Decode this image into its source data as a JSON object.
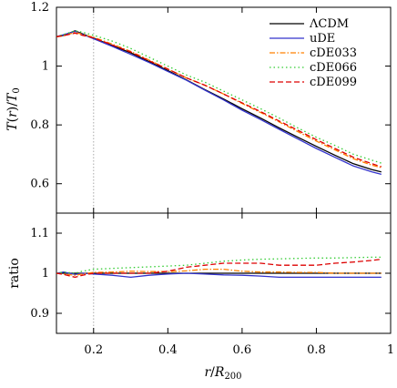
{
  "chart_data": [
    {
      "type": "line",
      "panel": "top",
      "ylabel_parts": [
        "T",
        "(",
        "r",
        ")/",
        "T",
        "0"
      ],
      "xlim": [
        0.1,
        1.0
      ],
      "ylim": [
        0.5,
        1.2
      ],
      "yticks": [
        0.6,
        0.8,
        1.0,
        1.2
      ],
      "ytick_labels": [
        "0.6",
        "0.8",
        "1",
        "1.2"
      ],
      "vline_x": 0.2,
      "legend_position": "top-right",
      "series": [
        {
          "name": "ΛCDM",
          "color": "#000000",
          "dash": "",
          "x": [
            0.1,
            0.12,
            0.15,
            0.17,
            0.2,
            0.25,
            0.3,
            0.35,
            0.4,
            0.45,
            0.5,
            0.55,
            0.6,
            0.65,
            0.7,
            0.75,
            0.8,
            0.85,
            0.9,
            0.95,
            0.975
          ],
          "y": [
            1.1,
            1.105,
            1.12,
            1.11,
            1.095,
            1.07,
            1.045,
            1.015,
            0.985,
            0.953,
            0.92,
            0.888,
            0.855,
            0.823,
            0.79,
            0.758,
            0.727,
            0.697,
            0.668,
            0.648,
            0.64
          ]
        },
        {
          "name": "uDE",
          "color": "#3333cc",
          "dash": "",
          "x": [
            0.1,
            0.12,
            0.15,
            0.17,
            0.2,
            0.25,
            0.3,
            0.35,
            0.4,
            0.45,
            0.5,
            0.55,
            0.6,
            0.65,
            0.7,
            0.75,
            0.8,
            0.85,
            0.9,
            0.95,
            0.975
          ],
          "y": [
            1.1,
            1.107,
            1.118,
            1.108,
            1.093,
            1.067,
            1.04,
            1.012,
            0.982,
            0.952,
            0.918,
            0.885,
            0.85,
            0.818,
            0.785,
            0.752,
            0.72,
            0.69,
            0.66,
            0.64,
            0.632
          ]
        },
        {
          "name": "cDE033",
          "color": "#ff8000",
          "dash": "6,2,1.5,2",
          "x": [
            0.1,
            0.12,
            0.15,
            0.17,
            0.2,
            0.25,
            0.3,
            0.35,
            0.4,
            0.45,
            0.5,
            0.55,
            0.6,
            0.65,
            0.7,
            0.75,
            0.8,
            0.85,
            0.9,
            0.95,
            0.975
          ],
          "y": [
            1.1,
            1.103,
            1.115,
            1.108,
            1.098,
            1.075,
            1.05,
            1.02,
            0.99,
            0.96,
            0.935,
            0.905,
            0.873,
            0.842,
            0.81,
            0.777,
            0.745,
            0.715,
            0.685,
            0.663,
            0.655
          ]
        },
        {
          "name": "cDE066",
          "color": "#33cc33",
          "dash": "1.5,3",
          "x": [
            0.1,
            0.12,
            0.15,
            0.17,
            0.2,
            0.25,
            0.3,
            0.35,
            0.4,
            0.45,
            0.5,
            0.55,
            0.6,
            0.65,
            0.7,
            0.75,
            0.8,
            0.85,
            0.9,
            0.95,
            0.975
          ],
          "y": [
            1.1,
            1.108,
            1.12,
            1.115,
            1.105,
            1.085,
            1.06,
            1.03,
            1.0,
            0.97,
            0.945,
            0.915,
            0.885,
            0.855,
            0.823,
            0.79,
            0.758,
            0.73,
            0.7,
            0.68,
            0.67
          ]
        },
        {
          "name": "cDE099",
          "color": "#dd0000",
          "dash": "6,3",
          "x": [
            0.1,
            0.12,
            0.15,
            0.17,
            0.2,
            0.25,
            0.3,
            0.35,
            0.4,
            0.45,
            0.5,
            0.55,
            0.6,
            0.65,
            0.7,
            0.75,
            0.8,
            0.85,
            0.9,
            0.95,
            0.975
          ],
          "y": [
            1.1,
            1.104,
            1.112,
            1.105,
            1.096,
            1.072,
            1.048,
            1.018,
            0.99,
            0.96,
            0.935,
            0.905,
            0.875,
            0.845,
            0.813,
            0.782,
            0.75,
            0.72,
            0.69,
            0.668,
            0.658
          ]
        }
      ]
    },
    {
      "type": "line",
      "panel": "bottom",
      "ylabel": "ratio",
      "xlabel_parts": [
        "r",
        "/",
        "R",
        "200"
      ],
      "xlim": [
        0.1,
        1.0
      ],
      "ylim": [
        0.85,
        1.15
      ],
      "xticks": [
        0.2,
        0.4,
        0.6,
        0.8,
        1.0
      ],
      "xtick_labels": [
        "0.2",
        "0.4",
        "0.6",
        "0.8",
        "1"
      ],
      "yticks": [
        0.9,
        1.0,
        1.1
      ],
      "ytick_labels": [
        "0.9",
        "1",
        "1.1"
      ],
      "vline_x": 0.2,
      "series": [
        {
          "name": "ΛCDM",
          "color": "#000000",
          "dash": "",
          "x": [
            0.1,
            0.975
          ],
          "y": [
            1.0,
            1.0
          ]
        },
        {
          "name": "uDE",
          "color": "#3333cc",
          "dash": "",
          "x": [
            0.1,
            0.12,
            0.15,
            0.17,
            0.2,
            0.25,
            0.3,
            0.35,
            0.4,
            0.45,
            0.5,
            0.55,
            0.6,
            0.65,
            0.7,
            0.75,
            0.8,
            0.85,
            0.9,
            0.95,
            0.975
          ],
          "y": [
            1.0,
            1.003,
            0.997,
            1.0,
            0.998,
            0.995,
            0.99,
            0.995,
            0.998,
            1.0,
            0.998,
            0.996,
            0.995,
            0.993,
            0.99,
            0.99,
            0.99,
            0.99,
            0.99,
            0.99,
            0.99
          ]
        },
        {
          "name": "cDE033",
          "color": "#ff8000",
          "dash": "6,2,1.5,2",
          "x": [
            0.1,
            0.12,
            0.15,
            0.17,
            0.2,
            0.25,
            0.3,
            0.35,
            0.4,
            0.45,
            0.5,
            0.55,
            0.6,
            0.65,
            0.7,
            0.75,
            0.8,
            0.85,
            0.9,
            0.95,
            0.975
          ],
          "y": [
            1.0,
            0.998,
            0.995,
            0.998,
            1.002,
            1.003,
            1.005,
            1.004,
            1.004,
            1.006,
            1.01,
            1.01,
            1.005,
            1.003,
            1.003,
            1.002,
            1.002,
            1.0,
            1.0,
            1.0,
            1.0
          ]
        },
        {
          "name": "cDE066",
          "color": "#33cc33",
          "dash": "1.5,3",
          "x": [
            0.1,
            0.12,
            0.15,
            0.17,
            0.2,
            0.25,
            0.3,
            0.35,
            0.4,
            0.45,
            0.5,
            0.55,
            0.6,
            0.65,
            0.7,
            0.75,
            0.8,
            0.85,
            0.9,
            0.95,
            0.975
          ],
          "y": [
            1.0,
            1.003,
            1.0,
            1.005,
            1.01,
            1.012,
            1.014,
            1.016,
            1.018,
            1.02,
            1.025,
            1.03,
            1.033,
            1.035,
            1.036,
            1.037,
            1.038,
            1.038,
            1.039,
            1.04,
            1.04
          ]
        },
        {
          "name": "cDE099",
          "color": "#dd0000",
          "dash": "6,3",
          "x": [
            0.1,
            0.12,
            0.15,
            0.17,
            0.2,
            0.25,
            0.3,
            0.35,
            0.4,
            0.45,
            0.5,
            0.55,
            0.6,
            0.65,
            0.7,
            0.75,
            0.8,
            0.85,
            0.9,
            0.95,
            0.975
          ],
          "y": [
            1.0,
            0.997,
            0.99,
            0.995,
            1.0,
            1.0,
            1.0,
            1.0,
            1.005,
            1.015,
            1.02,
            1.025,
            1.025,
            1.025,
            1.02,
            1.02,
            1.02,
            1.025,
            1.028,
            1.032,
            1.035
          ]
        }
      ]
    }
  ]
}
